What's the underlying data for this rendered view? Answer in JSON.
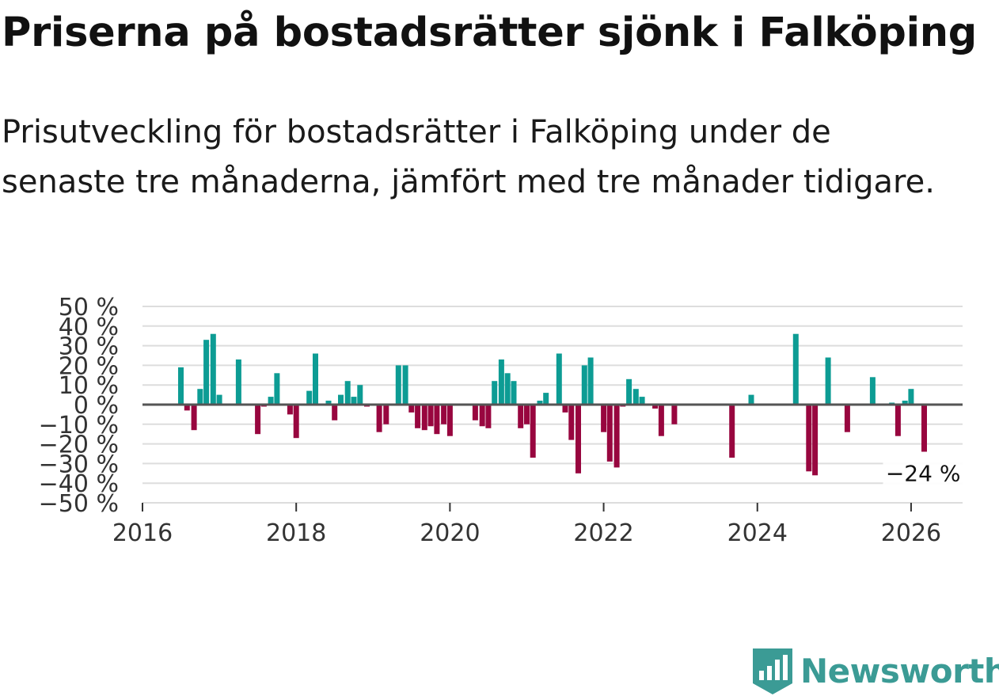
{
  "title": "Priserna på bostadsrätter sjönk i Falköping",
  "subtitle": "Prisutveckling för bostadsrätter i Falköping under de senaste tre månaderna, jämfört med tre månader tidigare.",
  "brand": "Newsworthy",
  "colors": {
    "positive": "#0d9c94",
    "negative": "#98063f",
    "grid": "#dddddd",
    "zero_line": "#555555",
    "brand": "#3b9b95"
  },
  "chart_data": {
    "type": "bar",
    "title": "Priserna på bostadsrätter sjönk i Falköping",
    "xlabel": "",
    "ylabel": "",
    "ylim": [
      -50,
      50
    ],
    "xlim": [
      2016,
      2026.67
    ],
    "y_ticks": [
      50,
      40,
      30,
      20,
      10,
      0,
      -10,
      -20,
      -30,
      -40,
      -50
    ],
    "y_tick_labels": [
      "50 %",
      "40 %",
      "30 %",
      "20 %",
      "10 %",
      "0 %",
      "−10 %",
      "−20 %",
      "−30 %",
      "−40 %",
      "−50 %"
    ],
    "x_ticks": [
      2016,
      2018,
      2020,
      2022,
      2024,
      2026
    ],
    "x_tick_labels": [
      "2016",
      "2018",
      "2020",
      "2022",
      "2024",
      "2026"
    ],
    "annotation": {
      "x": 2026.17,
      "y": -24,
      "label": "−24 %"
    },
    "series": [
      {
        "name": "Prisutveckling",
        "x": [
          2016.5,
          2016.58,
          2016.67,
          2016.75,
          2016.83,
          2016.92,
          2017.0,
          2017.25,
          2017.5,
          2017.58,
          2017.67,
          2017.75,
          2017.92,
          2018.0,
          2018.17,
          2018.25,
          2018.42,
          2018.5,
          2018.58,
          2018.67,
          2018.75,
          2018.83,
          2018.92,
          2019.08,
          2019.17,
          2019.33,
          2019.42,
          2019.5,
          2019.58,
          2019.67,
          2019.75,
          2019.83,
          2019.92,
          2020.0,
          2020.33,
          2020.42,
          2020.5,
          2020.58,
          2020.67,
          2020.75,
          2020.83,
          2020.92,
          2021.0,
          2021.08,
          2021.17,
          2021.25,
          2021.42,
          2021.5,
          2021.58,
          2021.67,
          2021.75,
          2021.83,
          2022.0,
          2022.08,
          2022.17,
          2022.25,
          2022.33,
          2022.42,
          2022.5,
          2022.67,
          2022.75,
          2022.92,
          2023.67,
          2023.92,
          2024.5,
          2024.67,
          2024.75,
          2024.92,
          2025.17,
          2025.5,
          2025.75,
          2025.83,
          2025.92,
          2026.0,
          2026.17
        ],
        "values": [
          19,
          -3,
          -13,
          8,
          33,
          36,
          5,
          23,
          -15,
          -1,
          4,
          16,
          -5,
          -17,
          7,
          26,
          2,
          -8,
          5,
          12,
          4,
          10,
          -1,
          -14,
          -10,
          20,
          20,
          -4,
          -12,
          -13,
          -11,
          -15,
          -10,
          -16,
          -8,
          -11,
          -12,
          12,
          23,
          16,
          12,
          -12,
          -10,
          -27,
          2,
          6,
          26,
          -4,
          -18,
          -35,
          20,
          24,
          -14,
          -29,
          -32,
          -1,
          13,
          8,
          4,
          -2,
          -16,
          -10,
          -27,
          5,
          36,
          -34,
          -36,
          24,
          -14,
          14,
          1,
          -16,
          2,
          8,
          -24
        ]
      }
    ]
  }
}
